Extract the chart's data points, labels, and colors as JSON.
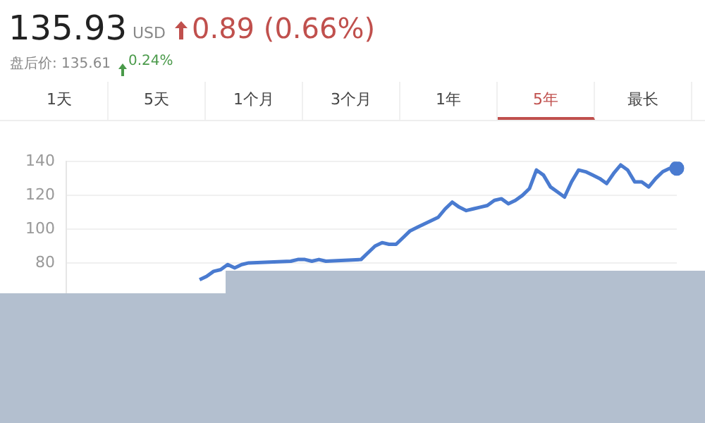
{
  "chart_data": {
    "type": "line",
    "title": "135.93",
    "annotations": [
      "USD",
      "0.89 (0.66%)",
      "盘后价: 135.61",
      "0.24%",
      "1天",
      "5天",
      "1个月",
      "3个月",
      "1年",
      "5年",
      "最长"
    ],
    "categories": [
      null,
      null,
      null,
      null,
      null,
      null,
      null,
      null,
      null,
      null,
      null,
      null,
      null,
      null,
      null,
      null,
      null,
      null,
      null,
      null,
      null,
      null,
      null,
      null,
      null,
      null,
      null,
      null,
      null,
      null,
      null,
      null,
      null,
      null,
      null,
      null,
      null,
      null,
      null,
      null,
      null,
      null,
      null,
      null,
      null,
      null,
      null,
      null,
      null,
      null,
      null,
      null,
      null,
      null,
      null,
      null,
      null,
      null,
      null,
      null,
      null,
      null,
      null,
      null,
      null,
      null,
      null,
      null,
      null,
      null,
      null,
      null,
      null,
      null,
      null,
      null,
      null,
      null,
      null,
      null,
      null,
      null,
      null,
      null,
      null,
      null,
      null,
      null
    ],
    "series": [
      {
        "color": "#4a7bd0",
        "values": [
          null,
          null,
          null,
          null,
          null,
          null,
          null,
          null,
          null,
          null,
          null,
          null,
          null,
          null,
          null,
          null,
          null,
          null,
          null,
          70,
          72,
          75,
          76,
          79,
          77,
          79,
          80,
          null,
          null,
          null,
          null,
          null,
          81,
          82,
          82,
          81,
          82,
          81,
          null,
          null,
          null,
          null,
          82,
          86,
          90,
          92,
          91,
          91,
          95,
          99,
          101,
          103,
          105,
          107,
          112,
          116,
          113,
          111,
          112,
          113,
          114,
          117,
          118,
          115,
          117,
          120,
          124,
          135,
          132,
          125,
          122,
          119,
          128,
          135,
          134,
          132,
          130,
          127,
          133,
          138,
          135,
          128,
          128,
          125,
          130,
          134,
          136,
          136
        ]
      }
    ],
    "ylim": [
      60,
      140
    ],
    "yticks": [
      80,
      100,
      120,
      140
    ],
    "grid": "y",
    "legend": false,
    "tick_labels": "y"
  }
}
